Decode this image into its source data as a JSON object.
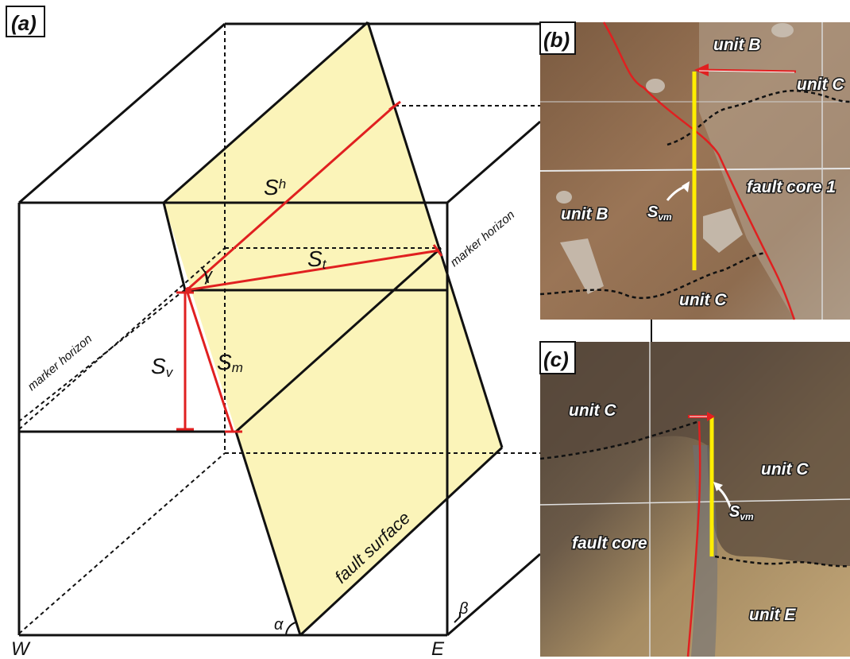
{
  "panel_a": {
    "label": "(a)",
    "sh": {
      "main": "S",
      "sub": "h"
    },
    "st": {
      "main": "S",
      "sub": "t"
    },
    "sm": {
      "main": "S",
      "sub": "m"
    },
    "sv": {
      "main": "S",
      "sub": "v"
    },
    "gamma": "γ",
    "alpha": "α",
    "beta": "β",
    "marker_horizon_right": "marker horizon",
    "marker_horizon_left": "marker horizon",
    "fault_surface": "fault surface",
    "west": "W",
    "east": "E"
  },
  "panel_b": {
    "label": "(b)",
    "unit_b_top": "unit B",
    "unit_c_top": "unit C",
    "fault_core_1": "fault core 1",
    "unit_b_left": "unit B",
    "svm": {
      "main": "S",
      "sub": "vm"
    },
    "unit_c_bottom": "unit C"
  },
  "panel_c": {
    "label": "(c)",
    "unit_c_left": "unit C",
    "unit_c_right": "unit C",
    "svm": {
      "main": "S",
      "sub": "vm"
    },
    "fault_core": "fault core",
    "unit_e": "unit E"
  },
  "colors": {
    "fault_plane": "#fbf4b9",
    "slip_red": "#e02020",
    "yellow_bar": "#ffee00",
    "soil_b": "#8a6a4e",
    "soil_c_bottom": "#b89a6c"
  }
}
